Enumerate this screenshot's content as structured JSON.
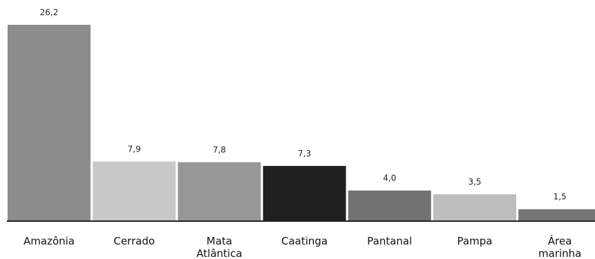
{
  "chart_data": {
    "type": "bar",
    "title": "",
    "xlabel": "",
    "ylabel": "",
    "categories": [
      "Amazônia",
      "Cerrado",
      "Mata Atlântica",
      "Caatinga",
      "Pantanal",
      "Pampa",
      "Área marinha"
    ],
    "category_lines": [
      [
        "Amazônia"
      ],
      [
        "Cerrado"
      ],
      [
        "Mata",
        "Atlântica"
      ],
      [
        "Caatinga"
      ],
      [
        "Pantanal"
      ],
      [
        "Pampa"
      ],
      [
        "Área",
        "marinha"
      ]
    ],
    "values": [
      26.2,
      7.9,
      7.8,
      7.3,
      4.0,
      3.5,
      1.5
    ],
    "value_labels": [
      "26,2",
      "7,9",
      "7,8",
      "7,3",
      "4,0",
      "3,5",
      "1,5"
    ],
    "colors": [
      "#8c8c8c",
      "#c8c8c8",
      "#979797",
      "#202020",
      "#727272",
      "#bdbdbd",
      "#757575"
    ],
    "ylim": [
      0,
      26.2
    ],
    "grid": false,
    "legend": "none"
  }
}
